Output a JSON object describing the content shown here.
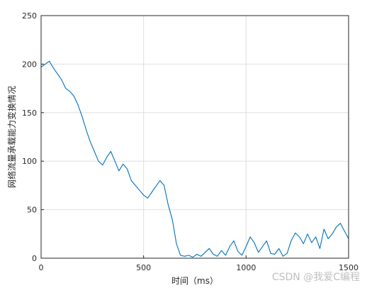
{
  "chart_data": {
    "type": "line",
    "xlabel": "时间（ms）",
    "ylabel": "网络流量承载能力变换情况",
    "xlim": [
      0,
      1500
    ],
    "ylim": [
      0,
      250
    ],
    "xticks": [
      0,
      500,
      1000,
      1500
    ],
    "yticks": [
      0,
      50,
      100,
      150,
      200,
      250
    ],
    "xtick_labels": [
      "0",
      "500",
      "1000",
      "1500"
    ],
    "ytick_labels": [
      "0",
      "50",
      "100",
      "150",
      "200",
      "250"
    ],
    "grid": true,
    "series": [
      {
        "color": "#0072BD",
        "x": [
          0,
          20,
          40,
          60,
          80,
          100,
          120,
          140,
          160,
          180,
          200,
          220,
          240,
          260,
          280,
          300,
          320,
          340,
          360,
          380,
          400,
          420,
          440,
          460,
          480,
          500,
          520,
          540,
          560,
          580,
          600,
          620,
          640,
          660,
          680,
          700,
          720,
          740,
          760,
          780,
          800,
          820,
          840,
          860,
          880,
          900,
          920,
          940,
          960,
          980,
          1000,
          1020,
          1040,
          1060,
          1080,
          1100,
          1120,
          1140,
          1160,
          1180,
          1200,
          1220,
          1240,
          1260,
          1280,
          1300,
          1320,
          1340,
          1360,
          1380,
          1400,
          1420,
          1440,
          1460,
          1480,
          1500
        ],
        "y": [
          197,
          200,
          203,
          196,
          190,
          184,
          175,
          172,
          167,
          158,
          146,
          132,
          120,
          110,
          100,
          96,
          104,
          110,
          100,
          90,
          97,
          92,
          80,
          75,
          70,
          65,
          62,
          68,
          74,
          80,
          75,
          55,
          40,
          15,
          3,
          2,
          3,
          1,
          4,
          2,
          6,
          10,
          4,
          2,
          8,
          3,
          12,
          18,
          7,
          3,
          12,
          22,
          16,
          6,
          12,
          18,
          5,
          4,
          10,
          2,
          5,
          18,
          26,
          22,
          15,
          25,
          16,
          22,
          10,
          30,
          20,
          25,
          32,
          36,
          28,
          20
        ]
      }
    ]
  },
  "watermark": "CSDN @我爱C编程"
}
